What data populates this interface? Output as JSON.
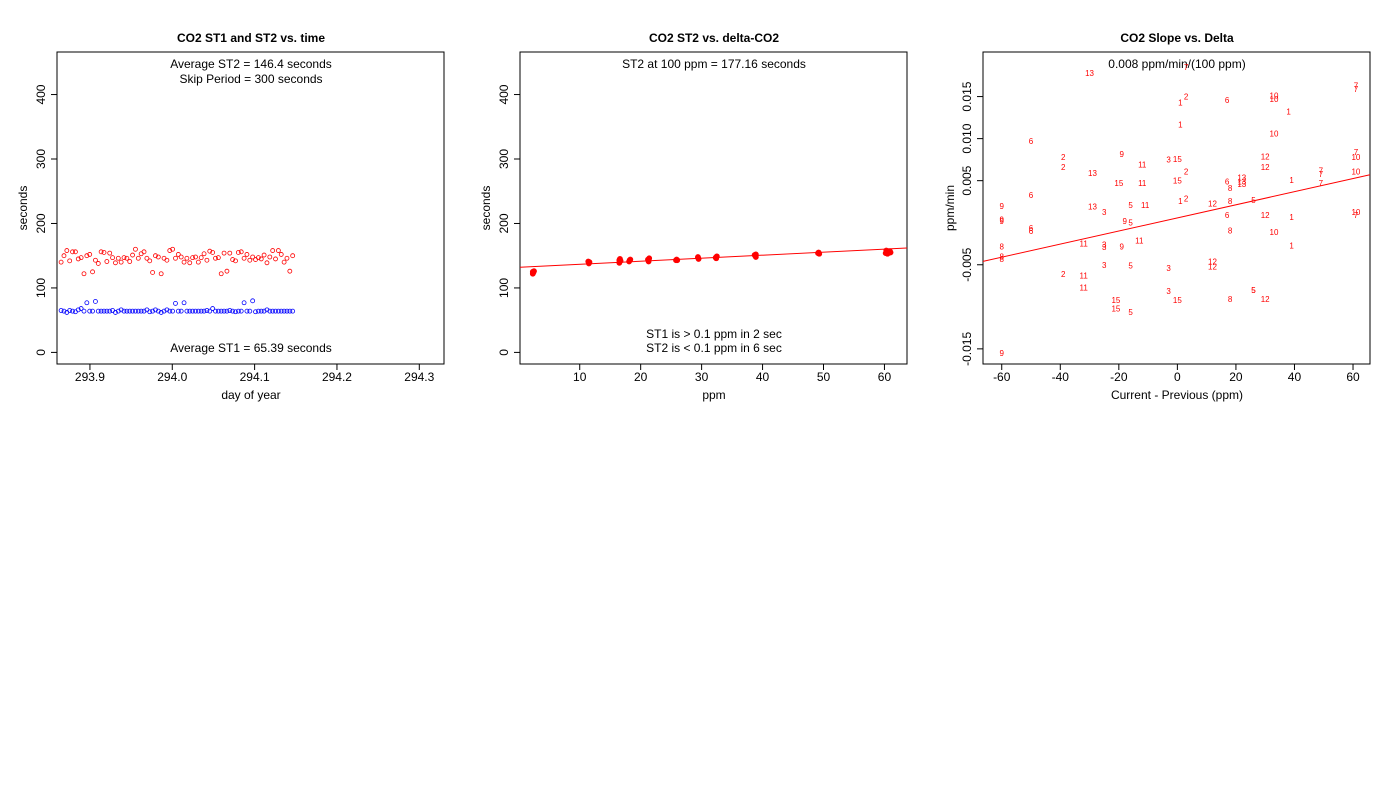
{
  "chart_data": [
    {
      "type": "scatter",
      "title": "CO2 ST1 and ST2 vs. time",
      "xlabel": "day of year",
      "ylabel": "seconds",
      "xlim": [
        293.86,
        294.33
      ],
      "ylim": [
        -18,
        466
      ],
      "xticks": [
        293.9,
        294.0,
        294.1,
        294.2,
        294.3
      ],
      "xtick_labels": [
        "293.9",
        "294.0",
        "294.1",
        "294.2",
        "294.3"
      ],
      "yticks": [
        0,
        100,
        200,
        300,
        400
      ],
      "ytick_labels": [
        "0",
        "100",
        "200",
        "300",
        "400"
      ],
      "annotations": {
        "avg_st2": "Average ST2 =  146.4  seconds",
        "skip": "Skip Period =  300  seconds",
        "avg_st1": "Average ST1 =  65.39  seconds"
      },
      "series": [
        {
          "name": "ST2",
          "color": "#ff0000",
          "marker": "circle",
          "x_start": 293.865,
          "x_step": 0.003472,
          "y": [
            140,
            150,
            158,
            142,
            156,
            156,
            145,
            147,
            122,
            150,
            152,
            125,
            143,
            138,
            156,
            155,
            141,
            154,
            147,
            139,
            146,
            140,
            147,
            146,
            141,
            151,
            160,
            146,
            153,
            156,
            146,
            142,
            124,
            150,
            148,
            122,
            146,
            143,
            158,
            160,
            146,
            152,
            148,
            140,
            146,
            139,
            147,
            148,
            140,
            147,
            153,
            143,
            157,
            155,
            146,
            147,
            122,
            154,
            126,
            154,
            144,
            142,
            155,
            156,
            146,
            152,
            143,
            148,
            144,
            147,
            145,
            151,
            139,
            148,
            158,
            145,
            158,
            152,
            140,
            146,
            126,
            150
          ]
        },
        {
          "name": "ST1",
          "color": "#0000ff",
          "marker": "circle",
          "x_start": 293.865,
          "x_step": 0.003472,
          "y": [
            65,
            64,
            62,
            65,
            64,
            63,
            66,
            68,
            64,
            77,
            64,
            64,
            79,
            64,
            64,
            64,
            64,
            64,
            65,
            62,
            64,
            66,
            64,
            64,
            64,
            64,
            64,
            64,
            64,
            64,
            66,
            63,
            64,
            66,
            64,
            62,
            64,
            66,
            64,
            64,
            76,
            64,
            64,
            77,
            64,
            64,
            64,
            64,
            64,
            64,
            64,
            65,
            64,
            68,
            64,
            64,
            64,
            64,
            64,
            65,
            64,
            63,
            64,
            64,
            77,
            64,
            64,
            80,
            63,
            64,
            64,
            64,
            66,
            64,
            64,
            64,
            64,
            64,
            64,
            64,
            64,
            64
          ]
        }
      ]
    },
    {
      "type": "scatter",
      "title": "CO2 ST2 vs. delta-CO2",
      "xlabel": "ppm",
      "ylabel": "seconds",
      "xlim": [
        0.2,
        63.7
      ],
      "ylim": [
        -18,
        466
      ],
      "xticks": [
        10,
        20,
        30,
        40,
        50,
        60
      ],
      "xtick_labels": [
        "10",
        "20",
        "30",
        "40",
        "50",
        "60"
      ],
      "yticks": [
        0,
        100,
        200,
        300,
        400
      ],
      "ytick_labels": [
        "0",
        "100",
        "200",
        "300",
        "400"
      ],
      "annotations": {
        "st2_100": "ST2 at 100 ppm =  177.16  seconds",
        "st1_note": "ST1 is > 0.1 ppm in 2 sec",
        "st2_note": "ST2 is < 0.1 ppm in 6 sec"
      },
      "fit_line": {
        "x": [
          0.2,
          63.7
        ],
        "y": [
          132,
          162
        ],
        "color": "#ff0000"
      },
      "series": [
        {
          "name": "ST2 vs delta",
          "color": "#ff0000",
          "marker": "filled-circle",
          "points": [
            [
              2.3,
              122
            ],
            [
              2.4,
              124
            ],
            [
              2.5,
              126
            ],
            [
              2.3,
              125
            ],
            [
              11.5,
              138
            ],
            [
              11.6,
              140
            ],
            [
              11.4,
              141
            ],
            [
              16.5,
              139
            ],
            [
              16.7,
              142
            ],
            [
              16.6,
              145
            ],
            [
              16.5,
              143
            ],
            [
              18.1,
              141
            ],
            [
              18.3,
              144
            ],
            [
              18.2,
              143
            ],
            [
              21.3,
              141
            ],
            [
              21.4,
              146
            ],
            [
              21.2,
              144
            ],
            [
              25.8,
              143
            ],
            [
              25.9,
              144
            ],
            [
              26.0,
              143
            ],
            [
              29.4,
              147
            ],
            [
              29.5,
              145
            ],
            [
              29.4,
              148
            ],
            [
              32.4,
              146
            ],
            [
              32.5,
              149
            ],
            [
              32.3,
              147
            ],
            [
              38.8,
              150
            ],
            [
              38.9,
              152
            ],
            [
              38.7,
              151
            ],
            [
              38.9,
              148
            ],
            [
              49.2,
              155
            ],
            [
              49.3,
              153
            ],
            [
              49.1,
              154
            ],
            [
              60.2,
              154
            ],
            [
              60.4,
              156
            ],
            [
              60.6,
              157
            ],
            [
              60.8,
              155
            ],
            [
              60.3,
              158
            ],
            [
              60.5,
              153
            ],
            [
              60.9,
              157
            ],
            [
              61.0,
              155
            ]
          ]
        }
      ]
    },
    {
      "type": "scatter",
      "title": "CO2 Slope vs. Delta",
      "xlabel": "Current - Previous (ppm)",
      "ylabel": "ppm/min",
      "xlim": [
        -66.4,
        65.8
      ],
      "ylim": [
        -0.0168,
        0.0203
      ],
      "xticks": [
        -60,
        -40,
        -20,
        0,
        20,
        40,
        60
      ],
      "xtick_labels": [
        "-60",
        "-40",
        "-20",
        "0",
        "20",
        "40",
        "60"
      ],
      "yticks": [
        -0.015,
        -0.005,
        0.005,
        0.01,
        0.015
      ],
      "ytick_labels": [
        "-0.015",
        "-0.005",
        "0.005",
        "0.010",
        "0.015"
      ],
      "annotations": {
        "slope": "0.008  ppm/min/(100 ppm)"
      },
      "fit_line": {
        "x": [
          -66.4,
          65.8
        ],
        "y": [
          -0.0046,
          0.0057
        ],
        "color": "#ff0000"
      },
      "points": [
        {
          "x": -30,
          "y": 0.0178,
          "label": "13"
        },
        {
          "x": 3,
          "y": 0.0185,
          "label": "7"
        },
        {
          "x": 3,
          "y": 0.015,
          "label": "2"
        },
        {
          "x": 1,
          "y": 0.0143,
          "label": "1"
        },
        {
          "x": 17,
          "y": 0.0146,
          "label": "6"
        },
        {
          "x": 33,
          "y": 0.0151,
          "label": "10"
        },
        {
          "x": 33,
          "y": 0.0147,
          "label": "10"
        },
        {
          "x": 38,
          "y": 0.0132,
          "label": "1"
        },
        {
          "x": 61,
          "y": 0.0163,
          "label": "7"
        },
        {
          "x": 61,
          "y": 0.0159,
          "label": "7"
        },
        {
          "x": 1,
          "y": 0.0117,
          "label": "1"
        },
        {
          "x": 33,
          "y": 0.0106,
          "label": "10"
        },
        {
          "x": -50,
          "y": 0.0097,
          "label": "6"
        },
        {
          "x": -19,
          "y": 0.0082,
          "label": "9"
        },
        {
          "x": -39,
          "y": 0.0078,
          "label": "2"
        },
        {
          "x": -3,
          "y": 0.0075,
          "label": "3"
        },
        {
          "x": 0,
          "y": 0.0076,
          "label": "15"
        },
        {
          "x": 30,
          "y": 0.0079,
          "label": "12"
        },
        {
          "x": 61,
          "y": 0.0084,
          "label": "7"
        },
        {
          "x": 61,
          "y": 0.0078,
          "label": "10"
        },
        {
          "x": -12,
          "y": 0.0069,
          "label": "11"
        },
        {
          "x": -39,
          "y": 0.0066,
          "label": "2"
        },
        {
          "x": 30,
          "y": 0.0066,
          "label": "12"
        },
        {
          "x": -29,
          "y": 0.0059,
          "label": "13"
        },
        {
          "x": 3,
          "y": 0.0061,
          "label": "2"
        },
        {
          "x": 49,
          "y": 0.0062,
          "label": "7"
        },
        {
          "x": 61,
          "y": 0.0061,
          "label": "10"
        },
        {
          "x": 49,
          "y": 0.0058,
          "label": "7"
        },
        {
          "x": -20,
          "y": 0.0047,
          "label": "15"
        },
        {
          "x": -12,
          "y": 0.0047,
          "label": "11"
        },
        {
          "x": 0,
          "y": 0.005,
          "label": "15"
        },
        {
          "x": 17,
          "y": 0.0049,
          "label": "6"
        },
        {
          "x": 22,
          "y": 0.0054,
          "label": "13"
        },
        {
          "x": 22,
          "y": 0.0049,
          "label": "13"
        },
        {
          "x": 22,
          "y": 0.0046,
          "label": "13"
        },
        {
          "x": 39,
          "y": 0.0051,
          "label": "1"
        },
        {
          "x": 49,
          "y": 0.0047,
          "label": "7"
        },
        {
          "x": 18,
          "y": 0.0041,
          "label": "8"
        },
        {
          "x": -50,
          "y": 0.0033,
          "label": "6"
        },
        {
          "x": 1,
          "y": 0.0026,
          "label": "1"
        },
        {
          "x": 3,
          "y": 0.0029,
          "label": "2"
        },
        {
          "x": 18,
          "y": 0.0026,
          "label": "8"
        },
        {
          "x": 26,
          "y": 0.0027,
          "label": "5"
        },
        {
          "x": -60,
          "y": 0.002,
          "label": "9"
        },
        {
          "x": -29,
          "y": 0.0019,
          "label": "13"
        },
        {
          "x": -16,
          "y": 0.0021,
          "label": "5"
        },
        {
          "x": -11,
          "y": 0.0021,
          "label": "11"
        },
        {
          "x": 12,
          "y": 0.0023,
          "label": "12"
        },
        {
          "x": -25,
          "y": 0.0013,
          "label": "3"
        },
        {
          "x": 17,
          "y": 0.0009,
          "label": "6"
        },
        {
          "x": 30,
          "y": 0.0009,
          "label": "12"
        },
        {
          "x": 39,
          "y": 0.0007,
          "label": "1"
        },
        {
          "x": 61,
          "y": 0.0013,
          "label": "10"
        },
        {
          "x": 61,
          "y": 0.0009,
          "label": "7"
        },
        {
          "x": -60,
          "y": 0.0004,
          "label": "9"
        },
        {
          "x": -60,
          "y": 0.0002,
          "label": "9"
        },
        {
          "x": -18,
          "y": 0.0002,
          "label": "9"
        },
        {
          "x": -16,
          "y": 0.0,
          "label": "5"
        },
        {
          "x": -50,
          "y": -0.0006,
          "label": "6"
        },
        {
          "x": -50,
          "y": -0.001,
          "label": "6"
        },
        {
          "x": 18,
          "y": -0.0009,
          "label": "8"
        },
        {
          "x": 33,
          "y": -0.0011,
          "label": "10"
        },
        {
          "x": -13,
          "y": -0.0021,
          "label": "11"
        },
        {
          "x": -60,
          "y": -0.0028,
          "label": "8"
        },
        {
          "x": -32,
          "y": -0.0025,
          "label": "11"
        },
        {
          "x": -25,
          "y": -0.0026,
          "label": "3"
        },
        {
          "x": -25,
          "y": -0.0029,
          "label": "3"
        },
        {
          "x": -19,
          "y": -0.0028,
          "label": "9"
        },
        {
          "x": 39,
          "y": -0.0027,
          "label": "1"
        },
        {
          "x": -60,
          "y": -0.004,
          "label": "8"
        },
        {
          "x": -60,
          "y": -0.0043,
          "label": "8"
        },
        {
          "x": 12,
          "y": -0.0046,
          "label": "12"
        },
        {
          "x": 12,
          "y": -0.0052,
          "label": "12"
        },
        {
          "x": -25,
          "y": -0.005,
          "label": "3"
        },
        {
          "x": -16,
          "y": -0.0051,
          "label": "5"
        },
        {
          "x": -3,
          "y": -0.0054,
          "label": "3"
        },
        {
          "x": -39,
          "y": -0.0061,
          "label": "2"
        },
        {
          "x": -32,
          "y": -0.0063,
          "label": "11"
        },
        {
          "x": -32,
          "y": -0.0077,
          "label": "11"
        },
        {
          "x": 26,
          "y": -0.008,
          "label": "5"
        },
        {
          "x": 26,
          "y": -0.008,
          "label": "5"
        },
        {
          "x": -3,
          "y": -0.0081,
          "label": "3"
        },
        {
          "x": -21,
          "y": -0.0092,
          "label": "15"
        },
        {
          "x": 0,
          "y": -0.0092,
          "label": "15"
        },
        {
          "x": 18,
          "y": -0.0091,
          "label": "8"
        },
        {
          "x": 30,
          "y": -0.0091,
          "label": "12"
        },
        {
          "x": -21,
          "y": -0.0102,
          "label": "15"
        },
        {
          "x": -16,
          "y": -0.0106,
          "label": "5"
        },
        {
          "x": -60,
          "y": -0.0155,
          "label": "9"
        }
      ]
    }
  ]
}
